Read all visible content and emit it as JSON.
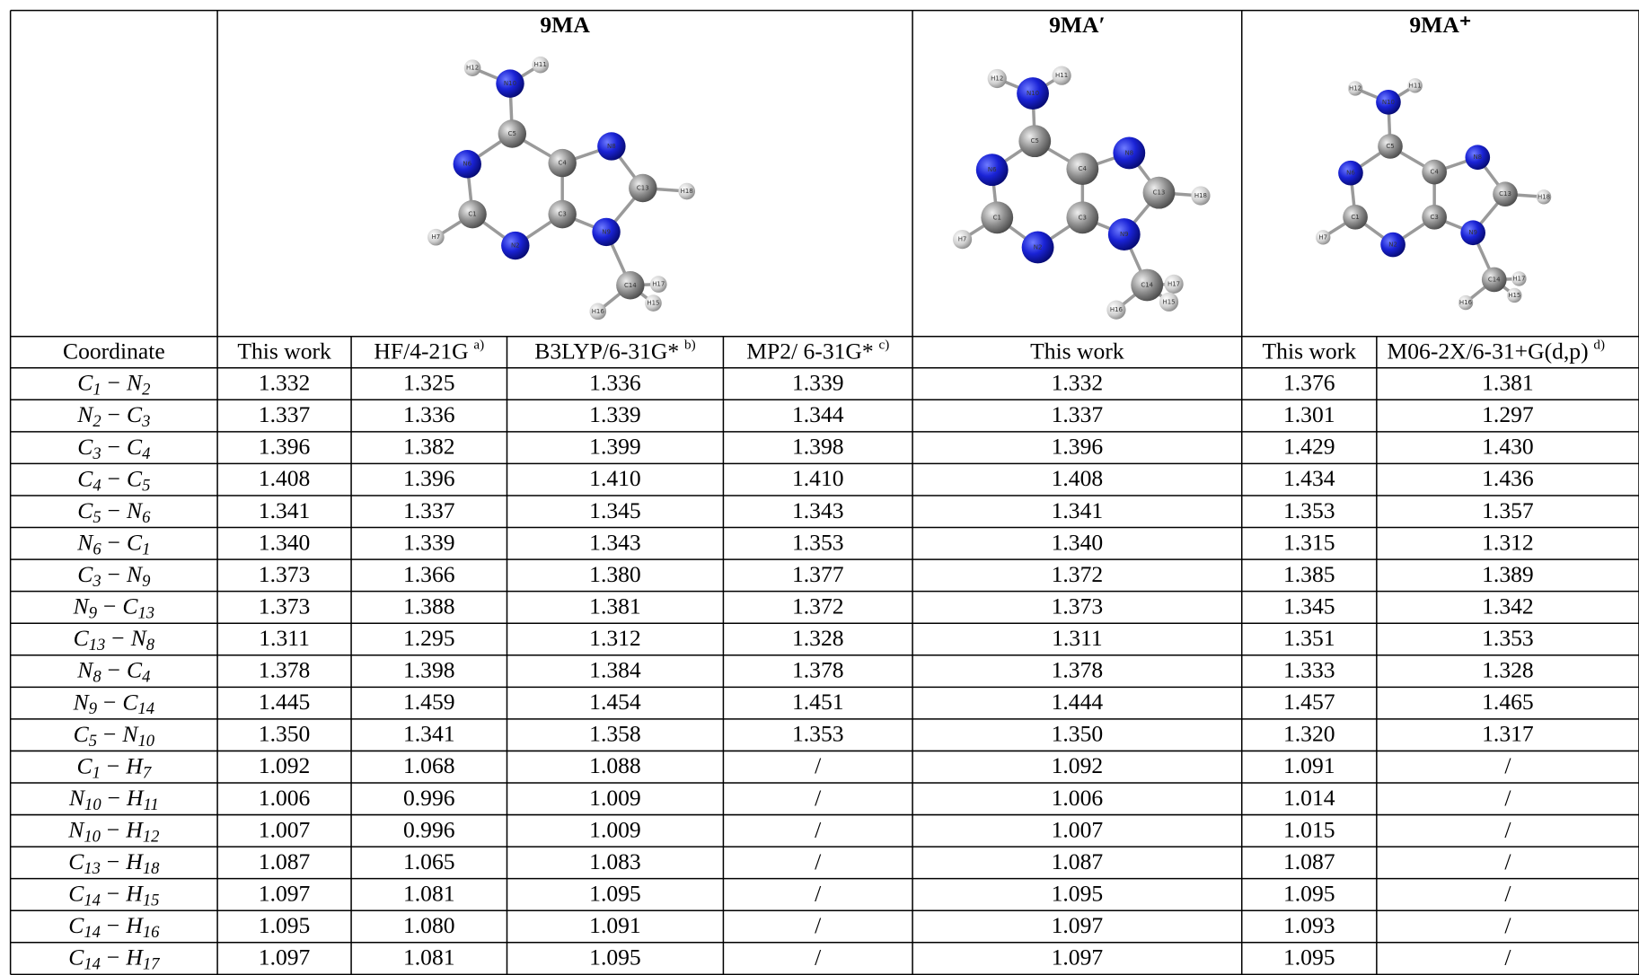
{
  "header": {
    "groups": [
      {
        "title": "9MA",
        "atoms": [
          "H12",
          "N10",
          "H11",
          "C5",
          "N6",
          "C4",
          "N8",
          "C1",
          "C3",
          "C13",
          "H18",
          "H7",
          "N2",
          "N9",
          "C14",
          "H17",
          "H15",
          "H16"
        ]
      },
      {
        "title": "9MA′",
        "atoms": [
          "H12",
          "N10",
          "H11",
          "C5",
          "N6",
          "C4",
          "N8",
          "C1",
          "C3",
          "C13",
          "H18",
          "H7",
          "N2",
          "N9",
          "C14",
          "H17",
          "H15",
          "H16"
        ]
      },
      {
        "title": "9MA⁺",
        "atoms": [
          "H12",
          "N10",
          "H11",
          "C5",
          "N6",
          "C4",
          "N8",
          "C1",
          "C3",
          "C13",
          "H18",
          "H7",
          "N2",
          "N9",
          "C14",
          "H17",
          "H15",
          "H16"
        ]
      }
    ],
    "columns": [
      {
        "text": "Coordinate"
      },
      {
        "text": "This work"
      },
      {
        "text": "HF/4-21G",
        "note": "a)"
      },
      {
        "text": "B3LYP/6-31G*",
        "note": "b)"
      },
      {
        "text": "MP2/ 6-31G*",
        "note": "c)"
      },
      {
        "text": "This work"
      },
      {
        "text": "This work"
      },
      {
        "text": "M06-2X/6-31+G(d,p)",
        "note": "d)"
      }
    ]
  },
  "table": {
    "rows": [
      {
        "coordinate": {
          "a": "C",
          "i": "1",
          "bond": "−",
          "b": "N",
          "j": "2"
        },
        "values": [
          "1.332",
          "1.325",
          "1.336",
          "1.339",
          "1.332",
          "1.376",
          "1.381"
        ]
      },
      {
        "coordinate": {
          "a": "N",
          "i": "2",
          "bond": "−",
          "b": "C",
          "j": "3"
        },
        "values": [
          "1.337",
          "1.336",
          "1.339",
          "1.344",
          "1.337",
          "1.301",
          "1.297"
        ]
      },
      {
        "coordinate": {
          "a": "C",
          "i": "3",
          "bond": "−",
          "b": "C",
          "j": "4"
        },
        "values": [
          "1.396",
          "1.382",
          "1.399",
          "1.398",
          "1.396",
          "1.429",
          "1.430"
        ]
      },
      {
        "coordinate": {
          "a": "C",
          "i": "4",
          "bond": "−",
          "b": "C",
          "j": "5"
        },
        "values": [
          "1.408",
          "1.396",
          "1.410",
          "1.410",
          "1.408",
          "1.434",
          "1.436"
        ]
      },
      {
        "coordinate": {
          "a": "C",
          "i": "5",
          "bond": "−",
          "b": "N",
          "j": "6"
        },
        "values": [
          "1.341",
          "1.337",
          "1.345",
          "1.343",
          "1.341",
          "1.353",
          "1.357"
        ]
      },
      {
        "coordinate": {
          "a": "N",
          "i": "6",
          "bond": "−",
          "b": "C",
          "j": "1"
        },
        "values": [
          "1.340",
          "1.339",
          "1.343",
          "1.353",
          "1.340",
          "1.315",
          "1.312"
        ]
      },
      {
        "coordinate": {
          "a": "C",
          "i": "3",
          "bond": "−",
          "b": "N",
          "j": "9"
        },
        "values": [
          "1.373",
          "1.366",
          "1.380",
          "1.377",
          "1.372",
          "1.385",
          "1.389"
        ]
      },
      {
        "coordinate": {
          "a": "N",
          "i": "9",
          "bond": "−",
          "b": "C",
          "j": "13"
        },
        "values": [
          "1.373",
          "1.388",
          "1.381",
          "1.372",
          "1.373",
          "1.345",
          "1.342"
        ]
      },
      {
        "coordinate": {
          "a": "C",
          "i": "13",
          "bond": "−",
          "b": "N",
          "j": "8"
        },
        "values": [
          "1.311",
          "1.295",
          "1.312",
          "1.328",
          "1.311",
          "1.351",
          "1.353"
        ]
      },
      {
        "coordinate": {
          "a": "N",
          "i": "8",
          "bond": "−",
          "b": "C",
          "j": "4"
        },
        "values": [
          "1.378",
          "1.398",
          "1.384",
          "1.378",
          "1.378",
          "1.333",
          "1.328"
        ]
      },
      {
        "coordinate": {
          "a": "N",
          "i": "9",
          "bond": "−",
          "b": "C",
          "j": "14"
        },
        "values": [
          "1.445",
          "1.459",
          "1.454",
          "1.451",
          "1.444",
          "1.457",
          "1.465"
        ]
      },
      {
        "coordinate": {
          "a": "C",
          "i": "5",
          "bond": "−",
          "b": "N",
          "j": "10"
        },
        "values": [
          "1.350",
          "1.341",
          "1.358",
          "1.353",
          "1.350",
          "1.320",
          "1.317"
        ]
      },
      {
        "coordinate": {
          "a": "C",
          "i": "1",
          "bond": "−",
          "b": "H",
          "j": "7"
        },
        "values": [
          "1.092",
          "1.068",
          "1.088",
          "/",
          "1.092",
          "1.091",
          "/"
        ]
      },
      {
        "coordinate": {
          "a": "N",
          "i": "10",
          "bond": "−",
          "b": "H",
          "j": "11"
        },
        "values": [
          "1.006",
          "0.996",
          "1.009",
          "/",
          "1.006",
          "1.014",
          "/"
        ]
      },
      {
        "coordinate": {
          "a": "N",
          "i": "10",
          "bond": "−",
          "b": "H",
          "j": "12"
        },
        "values": [
          "1.007",
          "0.996",
          "1.009",
          "/",
          "1.007",
          "1.015",
          "/"
        ]
      },
      {
        "coordinate": {
          "a": "C",
          "i": "13",
          "bond": "−",
          "b": "H",
          "j": "18"
        },
        "values": [
          "1.087",
          "1.065",
          "1.083",
          "/",
          "1.087",
          "1.087",
          "/"
        ]
      },
      {
        "coordinate": {
          "a": "C",
          "i": "14",
          "bond": "−",
          "b": "H",
          "j": "15"
        },
        "values": [
          "1.097",
          "1.081",
          "1.095",
          "/",
          "1.095",
          "1.095",
          "/"
        ]
      },
      {
        "coordinate": {
          "a": "C",
          "i": "14",
          "bond": "−",
          "b": "H",
          "j": "16"
        },
        "values": [
          "1.095",
          "1.080",
          "1.091",
          "/",
          "1.097",
          "1.093",
          "/"
        ]
      },
      {
        "coordinate": {
          "a": "C",
          "i": "14",
          "bond": "−",
          "b": "H",
          "j": "17"
        },
        "values": [
          "1.097",
          "1.081",
          "1.095",
          "/",
          "1.097",
          "1.095",
          "/"
        ]
      }
    ]
  }
}
